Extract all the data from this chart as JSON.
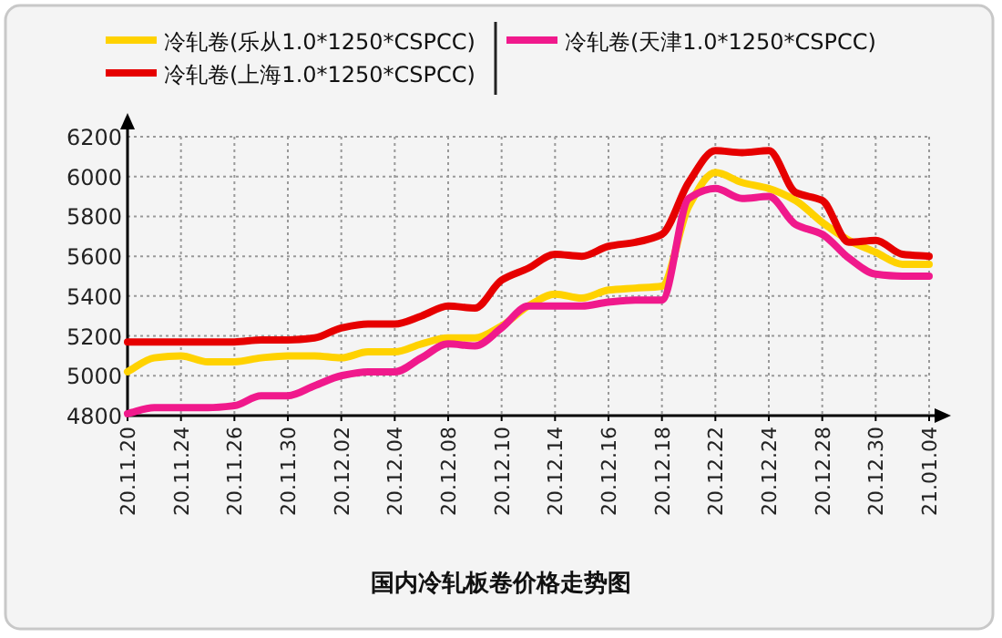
{
  "chart_data": {
    "type": "line",
    "title": "国内冷轧板卷价格走势图",
    "categories": [
      "20.11.20",
      null,
      "20.11.24",
      null,
      "20.11.26",
      null,
      "20.11.30",
      null,
      "20.12.02",
      null,
      "20.12.04",
      null,
      "20.12.08",
      null,
      "20.12.10",
      null,
      "20.12.14",
      null,
      "20.12.16",
      null,
      "20.12.18",
      null,
      "20.12.22",
      null,
      "20.12.24",
      null,
      "20.12.28",
      null,
      "20.12.30",
      null,
      "21.01.04"
    ],
    "series": [
      {
        "name": "冷轧卷(乐从1.0*1250*CSPCC)",
        "color": "#ffd200",
        "values": [
          5020,
          5090,
          5100,
          5070,
          5070,
          5090,
          5100,
          5100,
          5090,
          5120,
          5120,
          5160,
          5190,
          5190,
          5250,
          5350,
          5410,
          5390,
          5430,
          5440,
          5450,
          5850,
          6020,
          5970,
          5940,
          5880,
          5770,
          5680,
          5620,
          5560,
          5560
        ]
      },
      {
        "name": "冷轧卷(上海1.0*1250*CSPCC)",
        "color": "#e60000",
        "values": [
          5170,
          5170,
          5170,
          5170,
          5170,
          5180,
          5180,
          5190,
          5240,
          5260,
          5260,
          5300,
          5350,
          5340,
          5480,
          5540,
          5610,
          5600,
          5650,
          5670,
          5710,
          5970,
          6130,
          6120,
          6130,
          5920,
          5880,
          5670,
          5680,
          5610,
          5600
        ]
      },
      {
        "name": "冷轧卷(天津1.0*1250*CSPCC)",
        "color": "#f0198c",
        "values": [
          4810,
          4840,
          4840,
          4840,
          4850,
          4900,
          4900,
          4950,
          5000,
          5020,
          5020,
          5090,
          5160,
          5150,
          5240,
          5350,
          5350,
          5350,
          5370,
          5380,
          5380,
          5890,
          5940,
          5890,
          5900,
          5760,
          5710,
          5590,
          5510,
          5500,
          5500
        ]
      }
    ],
    "ylim": [
      4800,
      6200
    ],
    "yticks": [
      4800,
      5000,
      5200,
      5400,
      5600,
      5800,
      6000,
      6200
    ],
    "grid": true,
    "legend": "top",
    "line_style": "solid"
  }
}
